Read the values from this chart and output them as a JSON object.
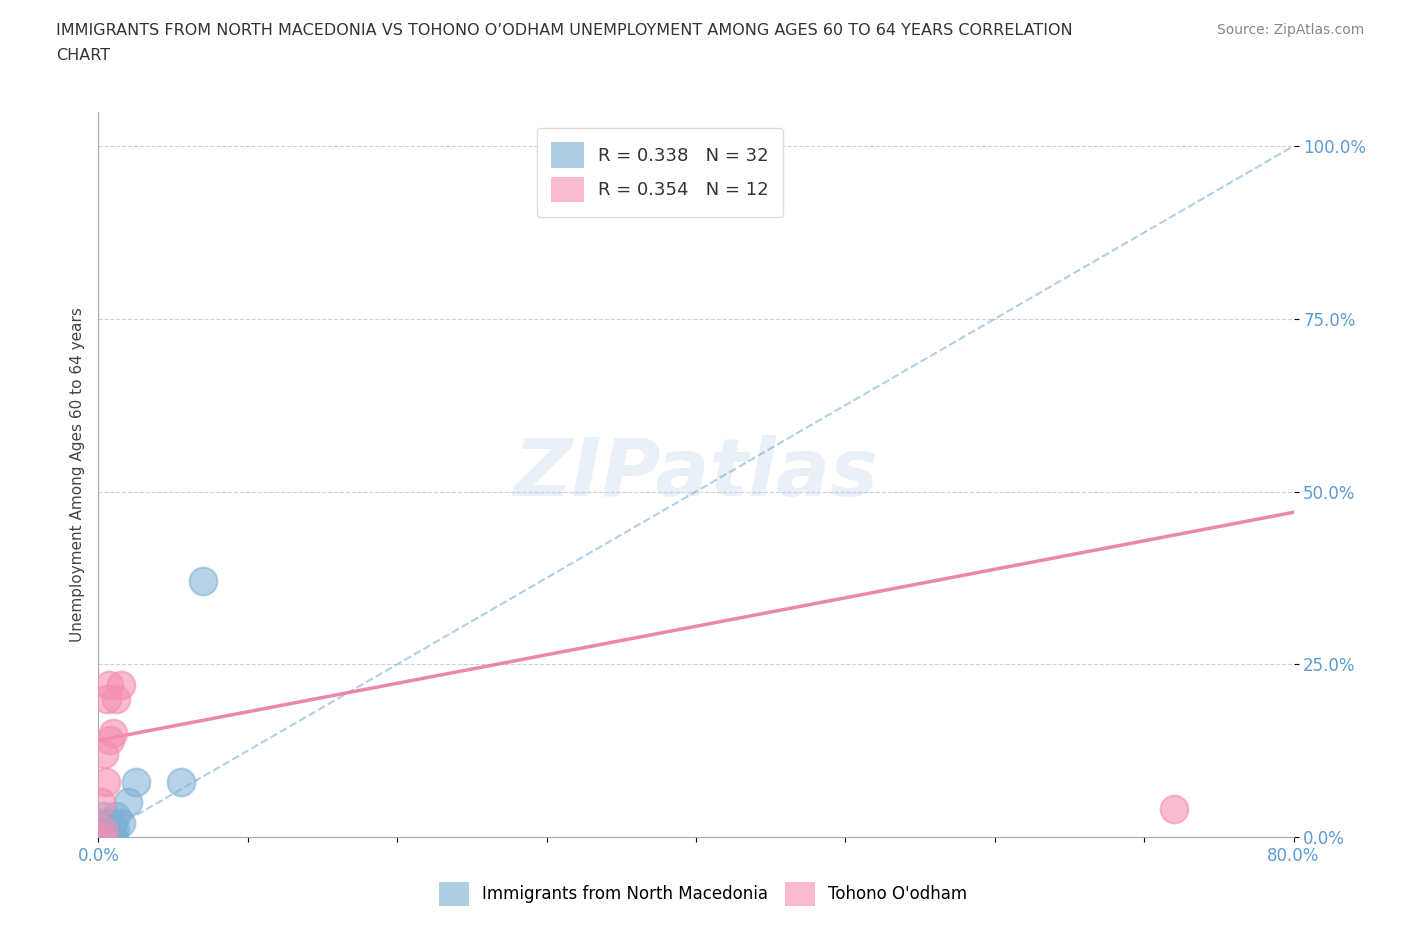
{
  "title_line1": "IMMIGRANTS FROM NORTH MACEDONIA VS TOHONO O’ODHAM UNEMPLOYMENT AMONG AGES 60 TO 64 YEARS CORRELATION",
  "title_line2": "CHART",
  "source": "Source: ZipAtlas.com",
  "ylabel": "Unemployment Among Ages 60 to 64 years",
  "xlim": [
    0.0,
    0.8
  ],
  "ylim": [
    0.0,
    1.05
  ],
  "xticks": [
    0.0,
    0.1,
    0.2,
    0.3,
    0.4,
    0.5,
    0.6,
    0.7,
    0.8
  ],
  "xticklabels": [
    "0.0%",
    "",
    "",
    "",
    "",
    "",
    "",
    "",
    "80.0%"
  ],
  "yticks": [
    0.0,
    0.25,
    0.5,
    0.75,
    1.0
  ],
  "yticklabels": [
    "0.0%",
    "25.0%",
    "50.0%",
    "75.0%",
    "100.0%"
  ],
  "blue_R": "R = 0.338",
  "blue_N": "N = 32",
  "pink_R": "R = 0.354",
  "pink_N": "N = 12",
  "blue_scatter_x": [
    0.0005,
    0.001,
    0.001,
    0.0015,
    0.002,
    0.002,
    0.003,
    0.003,
    0.003,
    0.003,
    0.004,
    0.004,
    0.004,
    0.005,
    0.005,
    0.005,
    0.006,
    0.006,
    0.007,
    0.007,
    0.008,
    0.009,
    0.009,
    0.01,
    0.01,
    0.011,
    0.012,
    0.015,
    0.02,
    0.025,
    0.055,
    0.07
  ],
  "blue_scatter_y": [
    0.0,
    0.0,
    0.01,
    0.0,
    0.0,
    0.02,
    0.0,
    0.0,
    0.01,
    0.03,
    0.0,
    0.0,
    0.01,
    0.0,
    0.0,
    0.02,
    0.0,
    0.01,
    0.0,
    0.02,
    0.01,
    0.0,
    0.01,
    0.0,
    0.02,
    0.01,
    0.03,
    0.02,
    0.05,
    0.08,
    0.08,
    0.37
  ],
  "pink_scatter_x": [
    0.001,
    0.002,
    0.003,
    0.004,
    0.005,
    0.006,
    0.007,
    0.008,
    0.01,
    0.012,
    0.015,
    0.72
  ],
  "pink_scatter_y": [
    0.0,
    0.05,
    0.01,
    0.12,
    0.08,
    0.2,
    0.22,
    0.14,
    0.15,
    0.2,
    0.22,
    0.04
  ],
  "blue_line_x": [
    0.0,
    0.8
  ],
  "blue_line_y": [
    0.0,
    1.0
  ],
  "pink_line_x": [
    0.0,
    0.8
  ],
  "pink_line_y": [
    0.14,
    0.47
  ],
  "blue_scatter_color": "#7bafd4",
  "pink_scatter_color": "#f48fb1",
  "blue_line_color": "#7bafd4",
  "pink_line_color": "#e8739a",
  "ytick_color": "#5b9bd5",
  "xtick_color": "#5b9bd5",
  "watermark": "ZIPatlas",
  "background_color": "#ffffff",
  "legend_label1": "Immigrants from North Macedonia",
  "legend_label2": "Tohono O'odham"
}
